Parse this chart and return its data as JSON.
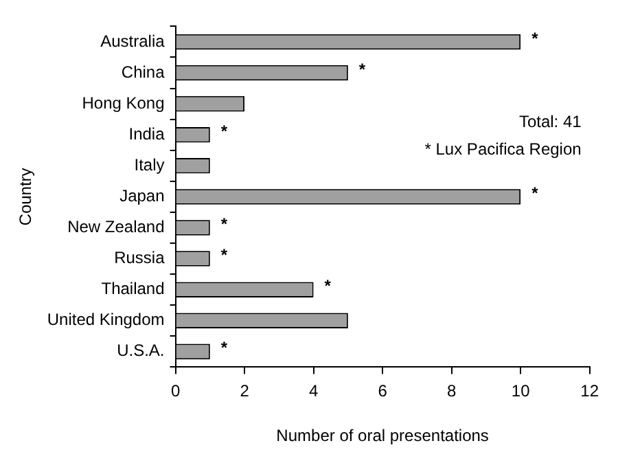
{
  "chart_data": {
    "type": "bar",
    "orientation": "horizontal",
    "xlabel": "Number of oral presentations",
    "ylabel": "Country",
    "categories": [
      "Australia",
      "China",
      "Hong Kong",
      "India",
      "Italy",
      "Japan",
      "New Zealand",
      "Russia",
      "Thailand",
      "United Kingdom",
      "U.S.A."
    ],
    "values": [
      10,
      5,
      2,
      1,
      1,
      10,
      1,
      1,
      4,
      5,
      1
    ],
    "value_labels": [
      "*",
      "*",
      null,
      "*",
      null,
      "*",
      "*",
      "*",
      "*",
      null,
      "*"
    ],
    "color": "#a0a0a0",
    "xlim": [
      0,
      12
    ],
    "xticks": [
      0,
      2,
      4,
      6,
      8,
      10,
      12
    ],
    "annotations": [
      "Total: 41",
      "* Lux Pacifica Region"
    ],
    "grid": false,
    "legend": false
  }
}
